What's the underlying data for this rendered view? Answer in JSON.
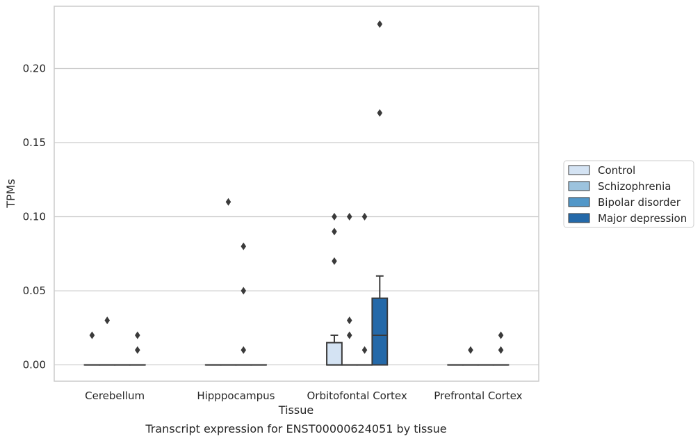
{
  "chart_data": {
    "type": "box",
    "title": "Transcript expression for ENST00000624051 by tissue",
    "xlabel": "Tissue",
    "ylabel": "TPMs",
    "categories": [
      "Cerebellum",
      "Hipppocampus",
      "Orbitofontal Cortex",
      "Prefrontal Cortex"
    ],
    "yticks": [
      "0.00",
      "0.05",
      "0.10",
      "0.15",
      "0.20"
    ],
    "ylim": [
      -0.011,
      0.242
    ],
    "grid": "horizontal",
    "legend_position": "right",
    "series": [
      {
        "name": "Control",
        "color": "#d4e3f3",
        "boxes": [
          {
            "q1": 0,
            "median": 0,
            "q3": 0,
            "whisker_low": 0,
            "whisker_high": 0,
            "outliers": [
              0.02
            ]
          },
          {
            "q1": 0,
            "median": 0,
            "q3": 0,
            "whisker_low": 0,
            "whisker_high": 0,
            "outliers": []
          },
          {
            "q1": 0,
            "median": 0,
            "q3": 0.015,
            "whisker_low": 0,
            "whisker_high": 0.02,
            "outliers": [
              0.07,
              0.09,
              0.1
            ]
          },
          {
            "q1": 0,
            "median": 0,
            "q3": 0,
            "whisker_low": 0,
            "whisker_high": 0,
            "outliers": []
          }
        ]
      },
      {
        "name": "Schizophrenia",
        "color": "#9cc3de",
        "boxes": [
          {
            "q1": 0,
            "median": 0,
            "q3": 0,
            "whisker_low": 0,
            "whisker_high": 0,
            "outliers": [
              0.03
            ]
          },
          {
            "q1": 0,
            "median": 0,
            "q3": 0,
            "whisker_low": 0,
            "whisker_high": 0,
            "outliers": [
              0.11
            ]
          },
          {
            "q1": 0,
            "median": 0,
            "q3": 0,
            "whisker_low": 0,
            "whisker_high": 0,
            "outliers": [
              0.02,
              0.03,
              0.1
            ]
          },
          {
            "q1": 0,
            "median": 0,
            "q3": 0,
            "whisker_low": 0,
            "whisker_high": 0,
            "outliers": [
              0.01
            ]
          }
        ]
      },
      {
        "name": "Bipolar disorder",
        "color": "#5297c8",
        "boxes": [
          {
            "q1": 0,
            "median": 0,
            "q3": 0,
            "whisker_low": 0,
            "whisker_high": 0,
            "outliers": []
          },
          {
            "q1": 0,
            "median": 0,
            "q3": 0,
            "whisker_low": 0,
            "whisker_high": 0,
            "outliers": [
              0.01,
              0.05,
              0.08
            ]
          },
          {
            "q1": 0,
            "median": 0,
            "q3": 0,
            "whisker_low": 0,
            "whisker_high": 0,
            "outliers": [
              0.01,
              0.1
            ]
          },
          {
            "q1": 0,
            "median": 0,
            "q3": 0,
            "whisker_low": 0,
            "whisker_high": 0,
            "outliers": []
          }
        ]
      },
      {
        "name": "Major depression",
        "color": "#2469a9",
        "boxes": [
          {
            "q1": 0,
            "median": 0,
            "q3": 0,
            "whisker_low": 0,
            "whisker_high": 0,
            "outliers": [
              0.01,
              0.02
            ]
          },
          {
            "q1": 0,
            "median": 0,
            "q3": 0,
            "whisker_low": 0,
            "whisker_high": 0,
            "outliers": []
          },
          {
            "q1": 0,
            "median": 0.02,
            "q3": 0.045,
            "whisker_low": 0,
            "whisker_high": 0.06,
            "outliers": [
              0.17,
              0.23
            ]
          },
          {
            "q1": 0,
            "median": 0,
            "q3": 0,
            "whisker_low": 0,
            "whisker_high": 0,
            "outliers": [
              0.01,
              0.02
            ]
          }
        ]
      }
    ]
  }
}
